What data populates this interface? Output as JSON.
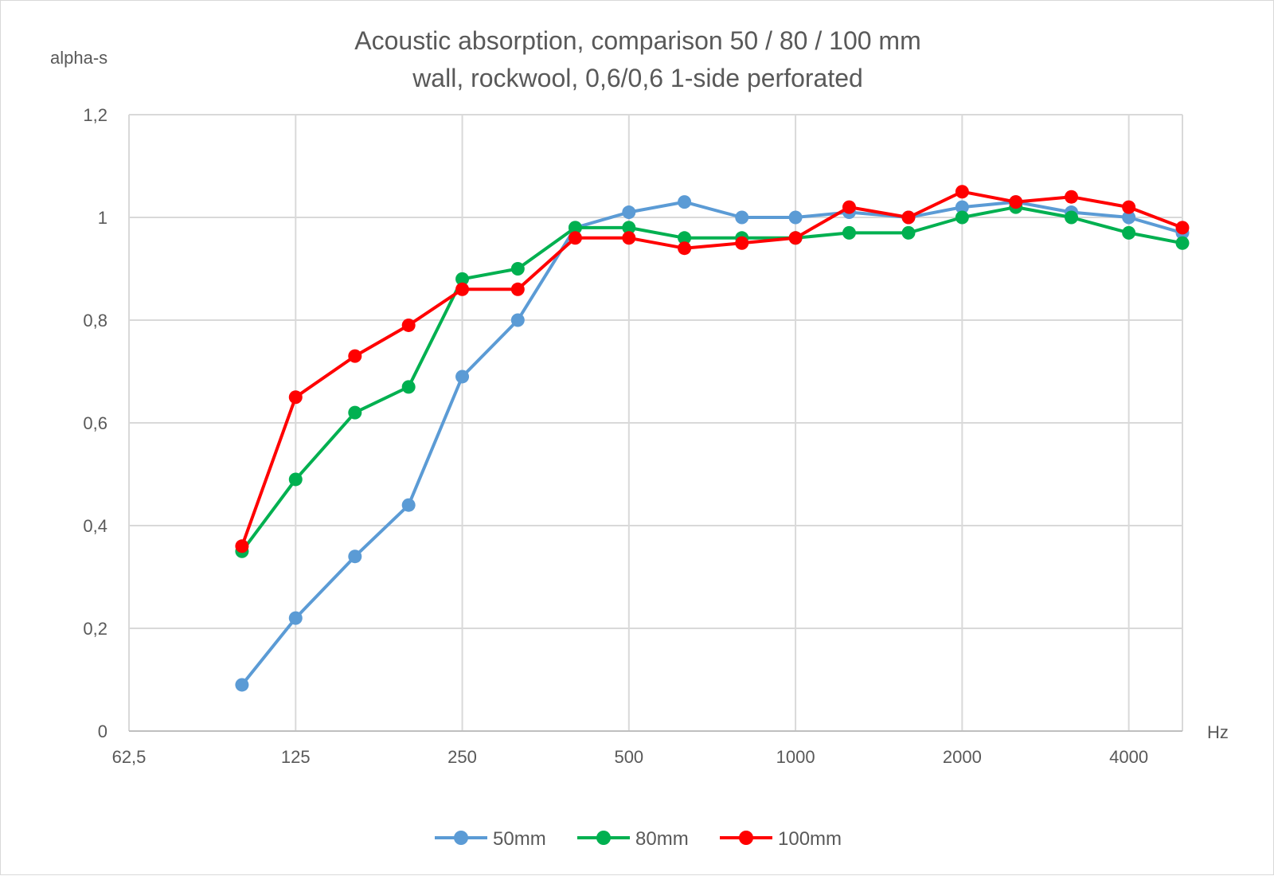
{
  "chart_data": {
    "type": "line",
    "title": "Acoustic absorption, comparison 50 / 80 / 100 mm",
    "subtitle": "wall, rockwool, 0,6/0,6 1-side perforated",
    "ylabel": "alpha-s",
    "xlabel": "Hz",
    "x_scale": "log2",
    "xlim": [
      62.5,
      5000
    ],
    "ylim": [
      0,
      1.2
    ],
    "x_ticks": [
      62.5,
      125,
      250,
      500,
      1000,
      2000,
      4000
    ],
    "x_tick_labels": [
      "62,5",
      "125",
      "250",
      "500",
      "1000",
      "2000",
      "4000"
    ],
    "y_ticks": [
      0,
      0.2,
      0.4,
      0.6,
      0.8,
      1,
      1.2
    ],
    "y_tick_labels": [
      "0",
      "0,2",
      "0,4",
      "0,6",
      "0,8",
      "1",
      "1,2"
    ],
    "grid": true,
    "legend_position": "bottom",
    "x": [
      100,
      125,
      160,
      200,
      250,
      315,
      400,
      500,
      630,
      800,
      1000,
      1250,
      1600,
      2000,
      2500,
      3150,
      4000,
      5000
    ],
    "series": [
      {
        "name": "50mm",
        "color": "#5b9bd5",
        "values": [
          0.09,
          0.22,
          0.34,
          0.44,
          0.69,
          0.8,
          0.98,
          1.01,
          1.03,
          1.0,
          1.0,
          1.01,
          1.0,
          1.02,
          1.03,
          1.01,
          1.0,
          0.97
        ]
      },
      {
        "name": "80mm",
        "color": "#00b050",
        "values": [
          0.35,
          0.49,
          0.62,
          0.67,
          0.88,
          0.9,
          0.98,
          0.98,
          0.96,
          0.96,
          0.96,
          0.97,
          0.97,
          1.0,
          1.02,
          1.0,
          0.97,
          0.95
        ]
      },
      {
        "name": "100mm",
        "color": "#ff0000",
        "values": [
          0.36,
          0.65,
          0.73,
          0.79,
          0.86,
          0.86,
          0.96,
          0.96,
          0.94,
          0.95,
          0.96,
          1.02,
          1.0,
          1.05,
          1.03,
          1.04,
          1.02,
          0.98
        ]
      }
    ]
  }
}
